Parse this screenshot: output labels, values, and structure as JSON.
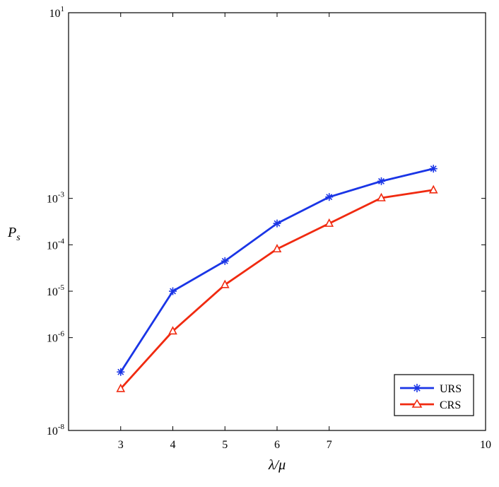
{
  "chart_data": {
    "type": "line",
    "xlabel": "λ/μ",
    "ylabel": "P",
    "ylabel_sub": "s",
    "y_scale": "log",
    "xlim": [
      2,
      10
    ],
    "ylim_exponents": [
      -8,
      1
    ],
    "x_ticks": [
      3,
      4,
      5,
      6,
      7,
      10
    ],
    "y_ticks": [
      {
        "exp": 1,
        "base": "10",
        "sup": "1"
      },
      {
        "exp": -3,
        "base": "10",
        "sup": "-3"
      },
      {
        "exp": -4,
        "base": "10",
        "sup": "-4"
      },
      {
        "exp": -5,
        "base": "10",
        "sup": "-5"
      },
      {
        "exp": -6,
        "base": "10",
        "sup": "-6"
      },
      {
        "exp": -8,
        "base": "10",
        "sup": "-8"
      }
    ],
    "legend_position": "bottom-right",
    "series": [
      {
        "name": "URS",
        "color": "#1a35e6",
        "marker": "asterisk",
        "x": [
          3,
          4,
          5,
          6,
          7,
          8,
          9
        ],
        "log10_y": [
          -6.74,
          -5.0,
          -4.35,
          -3.54,
          -2.97,
          -2.63,
          -2.36
        ]
      },
      {
        "name": "CRS",
        "color": "#f02a10",
        "marker": "triangle",
        "x": [
          3,
          4,
          5,
          6,
          7,
          8,
          9
        ],
        "log10_y": [
          -7.1,
          -5.86,
          -4.86,
          -4.09,
          -3.54,
          -2.99,
          -2.82
        ]
      }
    ]
  }
}
